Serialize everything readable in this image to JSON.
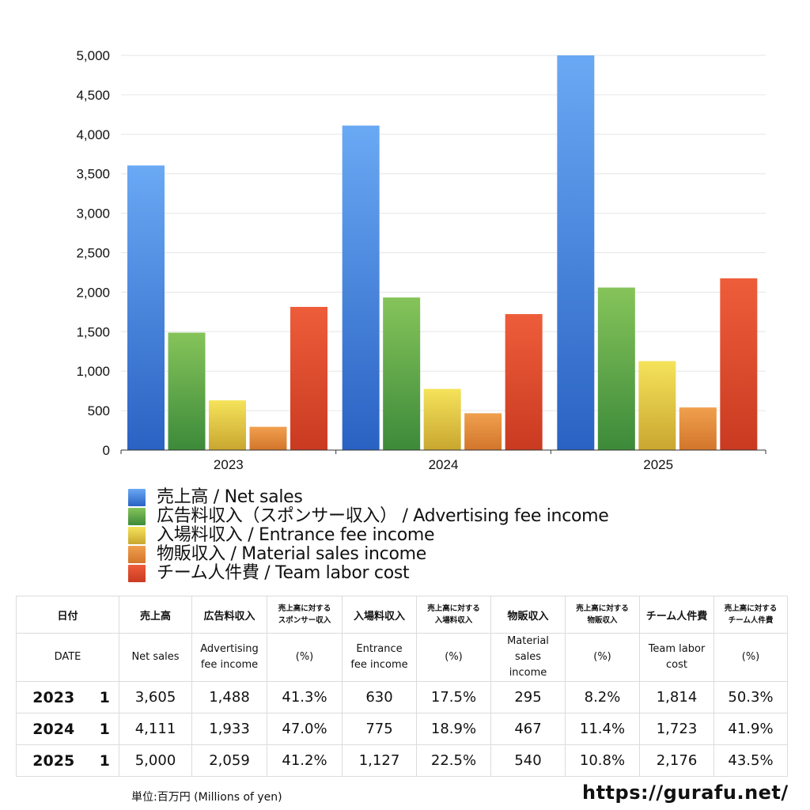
{
  "chart_data": {
    "type": "bar",
    "categories": [
      "2023",
      "2024",
      "2025"
    ],
    "ylim": [
      0,
      5000
    ],
    "y_ticks": [
      0,
      500,
      1000,
      1500,
      2000,
      2500,
      3000,
      3500,
      4000,
      4500,
      5000
    ],
    "y_tick_labels": [
      "0",
      "500",
      "1,000",
      "1,500",
      "2,000",
      "2,500",
      "3,000",
      "3,500",
      "4,000",
      "4,500",
      "5,000"
    ],
    "grid": true,
    "legend_position": "bottom",
    "series": [
      {
        "name": "売上高 / Net sales",
        "values": [
          3605,
          4111,
          5000
        ],
        "color_top": "#6aa9f4",
        "color_bottom": "#2a62c3"
      },
      {
        "name": "広告料収入（スポンサー収入） / Advertising fee income",
        "values": [
          1488,
          1933,
          2059
        ],
        "color_top": "#86c45a",
        "color_bottom": "#3c8a3a"
      },
      {
        "name": "入場料収入 / Entrance fee income",
        "values": [
          630,
          775,
          1127
        ],
        "color_top": "#f5e35a",
        "color_bottom": "#c9a630"
      },
      {
        "name": "物販収入 / Material sales income",
        "values": [
          295,
          467,
          540
        ],
        "color_top": "#f0a04e",
        "color_bottom": "#d2752b"
      },
      {
        "name": "チーム人件費 / Team labor cost",
        "values": [
          1814,
          1723,
          2176
        ],
        "color_top": "#ee5d3a",
        "color_bottom": "#c93a21"
      }
    ]
  },
  "table": {
    "header_jp": {
      "date": "日付",
      "net_sales": "売上高",
      "ad": "広告料収入",
      "ad_ratio": [
        "売上高に対する",
        "スポンサー収入"
      ],
      "entrance": "入場料収入",
      "entrance_ratio": [
        "売上高に対する",
        "入場料収入"
      ],
      "material": "物販収入",
      "material_ratio": [
        "売上高に対する",
        "物販収入"
      ],
      "labor": "チーム人件費",
      "labor_ratio": [
        "売上高に対する",
        "チーム人件費"
      ]
    },
    "header_en": {
      "date": "DATE",
      "net_sales": "Net sales",
      "ad": [
        "Advertising",
        "fee income"
      ],
      "ratio": "(%)",
      "entrance": [
        "Entrance",
        "fee income"
      ],
      "material": [
        "Material",
        "sales",
        "income"
      ],
      "labor": [
        "Team labor",
        "cost"
      ]
    },
    "rows": [
      {
        "year": "2023",
        "qty": "1",
        "net_sales": "3,605",
        "ad": "1,488",
        "ad_pct": "41.3%",
        "entrance": "630",
        "entrance_pct": "17.5%",
        "material": "295",
        "material_pct": "8.2%",
        "labor": "1,814",
        "labor_pct": "50.3%"
      },
      {
        "year": "2024",
        "qty": "1",
        "net_sales": "4,111",
        "ad": "1,933",
        "ad_pct": "47.0%",
        "entrance": "775",
        "entrance_pct": "18.9%",
        "material": "467",
        "material_pct": "11.4%",
        "labor": "1,723",
        "labor_pct": "41.9%"
      },
      {
        "year": "2025",
        "qty": "1",
        "net_sales": "5,000",
        "ad": "2,059",
        "ad_pct": "41.2%",
        "entrance": "1,127",
        "entrance_pct": "22.5%",
        "material": "540",
        "material_pct": "10.8%",
        "labor": "2,176",
        "labor_pct": "43.5%"
      }
    ]
  },
  "footer": {
    "unit": "単位:百万円 (Millions of yen)",
    "site": "https://gurafu.net/"
  }
}
